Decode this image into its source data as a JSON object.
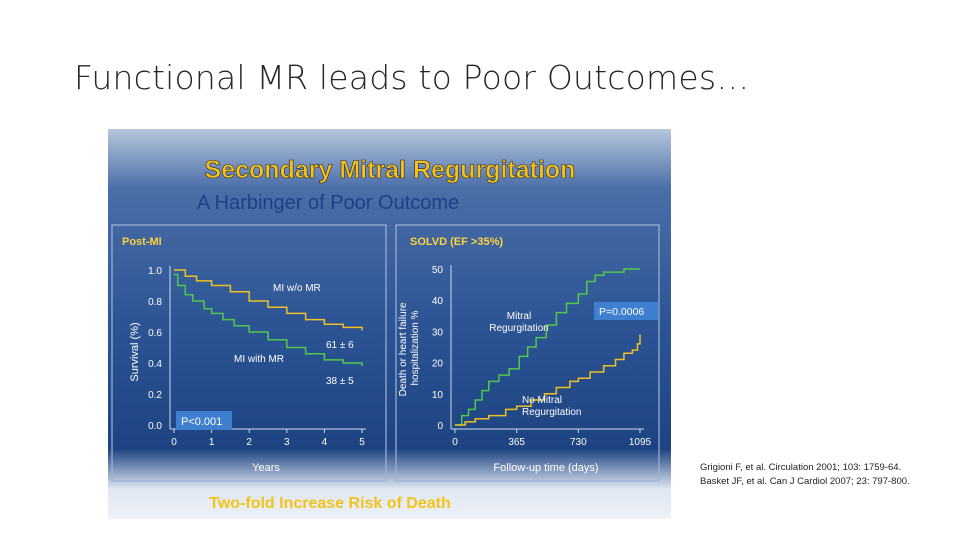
{
  "slide": {
    "title": "Functional MR leads to Poor Outcomes…"
  },
  "figure": {
    "title": "Secondary Mitral Regurgitation",
    "subtitle": "A Harbinger of Poor Outcome",
    "footer": "Two-fold Increase Risk of Death",
    "colors": {
      "title": "#f6c21a",
      "subtitle": "#1f3f86",
      "panel_label": "#ffd23d",
      "green_curve": "#52c84a",
      "yellow_curve": "#f0c020",
      "pbox": "#3f7fd0",
      "footer": "#f3c318"
    }
  },
  "chart_data": [
    {
      "type": "line",
      "panel_label": "Post-MI",
      "xlabel": "Years",
      "ylabel": "Survival (%)",
      "xlim": [
        0,
        5
      ],
      "ylim": [
        0,
        1.0
      ],
      "x_ticks": [
        "0",
        "1",
        "2",
        "3",
        "4",
        "5"
      ],
      "y_ticks": [
        "0.0",
        "0.2",
        "0.4",
        "0.6",
        "0.8",
        "1.0"
      ],
      "series": [
        {
          "name": "MI w/o MR",
          "color": "#f0c020",
          "points": [
            [
              0,
              1.0
            ],
            [
              0.3,
              0.96
            ],
            [
              0.6,
              0.93
            ],
            [
              1.0,
              0.9
            ],
            [
              1.5,
              0.86
            ],
            [
              2.0,
              0.8
            ],
            [
              2.5,
              0.76
            ],
            [
              3.0,
              0.72
            ],
            [
              3.5,
              0.68
            ],
            [
              4.0,
              0.65
            ],
            [
              4.5,
              0.63
            ],
            [
              5.0,
              0.61
            ]
          ],
          "end_label": "61 ± 6"
        },
        {
          "name": "MI with MR",
          "color": "#52c84a",
          "points": [
            [
              0,
              0.97
            ],
            [
              0.1,
              0.9
            ],
            [
              0.3,
              0.84
            ],
            [
              0.5,
              0.8
            ],
            [
              0.8,
              0.75
            ],
            [
              1.0,
              0.72
            ],
            [
              1.3,
              0.68
            ],
            [
              1.6,
              0.64
            ],
            [
              2.0,
              0.6
            ],
            [
              2.5,
              0.55
            ],
            [
              3.0,
              0.5
            ],
            [
              3.5,
              0.46
            ],
            [
              4.0,
              0.42
            ],
            [
              4.5,
              0.4
            ],
            [
              5.0,
              0.38
            ]
          ],
          "end_label": "38 ± 5"
        }
      ],
      "pvalue": "P<0.001"
    },
    {
      "type": "line",
      "panel_label": "SOLVD (EF >35%)",
      "xlabel": "Follow-up time (days)",
      "ylabel": "Death or heart failure hospitalization %",
      "xlim": [
        0,
        1095
      ],
      "ylim": [
        0,
        50
      ],
      "x_ticks": [
        "0",
        "365",
        "730",
        "1095"
      ],
      "y_ticks": [
        "0",
        "10",
        "20",
        "30",
        "40",
        "50"
      ],
      "series": [
        {
          "name": "Mitral Regurgitation",
          "color": "#52c84a",
          "points": [
            [
              0,
              0
            ],
            [
              40,
              3
            ],
            [
              80,
              5
            ],
            [
              120,
              8
            ],
            [
              160,
              11
            ],
            [
              200,
              14
            ],
            [
              260,
              16
            ],
            [
              320,
              18
            ],
            [
              380,
              22
            ],
            [
              430,
              25
            ],
            [
              480,
              28
            ],
            [
              540,
              32
            ],
            [
              600,
              36
            ],
            [
              660,
              39
            ],
            [
              730,
              42
            ],
            [
              780,
              46
            ],
            [
              830,
              48
            ],
            [
              880,
              49
            ],
            [
              1000,
              50
            ],
            [
              1095,
              50
            ]
          ]
        },
        {
          "name": "No Mitral Regurgitation",
          "color": "#f0c020",
          "points": [
            [
              0,
              0
            ],
            [
              60,
              1
            ],
            [
              120,
              2
            ],
            [
              200,
              3
            ],
            [
              300,
              5
            ],
            [
              365,
              6
            ],
            [
              450,
              8
            ],
            [
              530,
              10
            ],
            [
              600,
              12
            ],
            [
              680,
              14
            ],
            [
              730,
              15
            ],
            [
              800,
              17
            ],
            [
              880,
              19
            ],
            [
              950,
              21
            ],
            [
              1000,
              23
            ],
            [
              1050,
              24
            ],
            [
              1080,
              26
            ],
            [
              1095,
              29
            ]
          ]
        }
      ],
      "pvalue": "P=0.0006"
    }
  ],
  "citation": {
    "line1": "Grigioni F, et al. Circulation 2001; 103: 1759-64.",
    "line2": "Basket JF, et al. Can J Cardiol 2007; 23: 797-800."
  }
}
